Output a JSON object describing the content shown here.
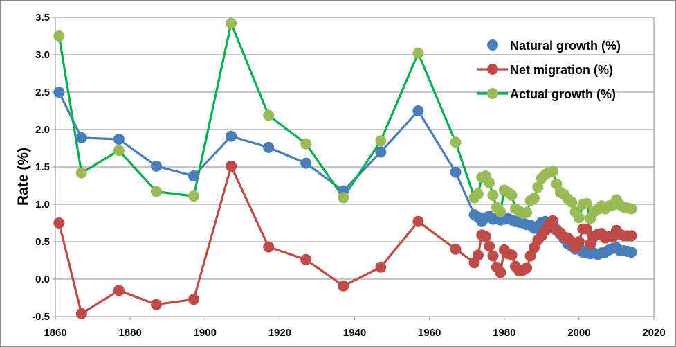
{
  "chart_data": {
    "type": "line",
    "title": "",
    "xlabel": "",
    "ylabel": "Rate (%)",
    "xlim": [
      1860,
      2020
    ],
    "ylim": [
      -0.5,
      3.5
    ],
    "x_ticks": [
      "1860",
      "1880",
      "1900",
      "1920",
      "1940",
      "1960",
      "1980",
      "2000",
      "2020"
    ],
    "y_ticks": [
      "-0.5",
      "0.0",
      "0.5",
      "1.0",
      "1.5",
      "2.0",
      "2.5",
      "3.0",
      "3.5"
    ],
    "grid": "horizontal",
    "legend_position": "top-right",
    "series": [
      {
        "name": "Natural growth (%)",
        "color": "#4a7ebb",
        "points": [
          [
            1861,
            2.5
          ],
          [
            1867,
            1.89
          ],
          [
            1877,
            1.87
          ],
          [
            1887,
            1.51
          ],
          [
            1897,
            1.38
          ],
          [
            1907,
            1.91
          ],
          [
            1917,
            1.76
          ],
          [
            1927,
            1.55
          ],
          [
            1937,
            1.18
          ],
          [
            1947,
            1.7
          ],
          [
            1957,
            2.25
          ],
          [
            1967,
            1.43
          ],
          [
            1972,
            0.86
          ],
          [
            1973,
            0.83
          ],
          [
            1974,
            0.77
          ],
          [
            1975,
            0.82
          ],
          [
            1976,
            0.84
          ],
          [
            1977,
            0.8
          ],
          [
            1978,
            0.81
          ],
          [
            1979,
            0.79
          ],
          [
            1980,
            0.8
          ],
          [
            1981,
            0.81
          ],
          [
            1982,
            0.79
          ],
          [
            1983,
            0.77
          ],
          [
            1984,
            0.76
          ],
          [
            1985,
            0.75
          ],
          [
            1986,
            0.73
          ],
          [
            1987,
            0.72
          ],
          [
            1988,
            0.68
          ],
          [
            1989,
            0.71
          ],
          [
            1990,
            0.76
          ],
          [
            1991,
            0.77
          ],
          [
            1992,
            0.76
          ],
          [
            1993,
            0.72
          ],
          [
            1994,
            0.66
          ],
          [
            1995,
            0.6
          ],
          [
            1996,
            0.54
          ],
          [
            1997,
            0.47
          ],
          [
            1998,
            0.44
          ],
          [
            1999,
            0.4
          ],
          [
            2000,
            0.43
          ],
          [
            2001,
            0.36
          ],
          [
            2002,
            0.35
          ],
          [
            2003,
            0.34
          ],
          [
            2004,
            0.35
          ],
          [
            2005,
            0.33
          ],
          [
            2006,
            0.35
          ],
          [
            2007,
            0.36
          ],
          [
            2008,
            0.39
          ],
          [
            2009,
            0.41
          ],
          [
            2010,
            0.42
          ],
          [
            2011,
            0.38
          ],
          [
            2012,
            0.38
          ],
          [
            2013,
            0.37
          ],
          [
            2014,
            0.36
          ]
        ]
      },
      {
        "name": "Net migration (%)",
        "color": "#be4b48",
        "points": [
          [
            1861,
            0.75
          ],
          [
            1867,
            -0.46
          ],
          [
            1877,
            -0.15
          ],
          [
            1887,
            -0.34
          ],
          [
            1897,
            -0.27
          ],
          [
            1907,
            1.51
          ],
          [
            1917,
            0.43
          ],
          [
            1927,
            0.26
          ],
          [
            1937,
            -0.09
          ],
          [
            1947,
            0.16
          ],
          [
            1957,
            0.77
          ],
          [
            1967,
            0.4
          ],
          [
            1972,
            0.22
          ],
          [
            1973,
            0.32
          ],
          [
            1974,
            0.59
          ],
          [
            1975,
            0.57
          ],
          [
            1976,
            0.44
          ],
          [
            1977,
            0.31
          ],
          [
            1978,
            0.16
          ],
          [
            1979,
            0.09
          ],
          [
            1980,
            0.39
          ],
          [
            1981,
            0.34
          ],
          [
            1982,
            0.32
          ],
          [
            1983,
            0.17
          ],
          [
            1984,
            0.11
          ],
          [
            1985,
            0.12
          ],
          [
            1986,
            0.15
          ],
          [
            1987,
            0.31
          ],
          [
            1988,
            0.42
          ],
          [
            1989,
            0.52
          ],
          [
            1990,
            0.58
          ],
          [
            1991,
            0.65
          ],
          [
            1992,
            0.74
          ],
          [
            1993,
            0.78
          ],
          [
            1994,
            0.65
          ],
          [
            1995,
            0.62
          ],
          [
            1996,
            0.56
          ],
          [
            1997,
            0.55
          ],
          [
            1998,
            0.5
          ],
          [
            1999,
            0.42
          ],
          [
            2000,
            0.5
          ],
          [
            2001,
            0.67
          ],
          [
            2002,
            0.67
          ],
          [
            2003,
            0.47
          ],
          [
            2004,
            0.57
          ],
          [
            2005,
            0.6
          ],
          [
            2006,
            0.61
          ],
          [
            2007,
            0.55
          ],
          [
            2008,
            0.57
          ],
          [
            2009,
            0.56
          ],
          [
            2010,
            0.65
          ],
          [
            2011,
            0.6
          ],
          [
            2012,
            0.58
          ],
          [
            2013,
            0.58
          ],
          [
            2014,
            0.58
          ]
        ]
      },
      {
        "name": "Actual growth (%)",
        "color": "#00b050",
        "marker_color": "#9bbb59",
        "points": [
          [
            1861,
            3.25
          ],
          [
            1867,
            1.42
          ],
          [
            1877,
            1.72
          ],
          [
            1887,
            1.17
          ],
          [
            1897,
            1.11
          ],
          [
            1907,
            3.42
          ],
          [
            1917,
            2.19
          ],
          [
            1927,
            1.81
          ],
          [
            1937,
            1.09
          ],
          [
            1947,
            1.85
          ],
          [
            1957,
            3.02
          ],
          [
            1967,
            1.83
          ],
          [
            1972,
            1.09
          ],
          [
            1973,
            1.14
          ],
          [
            1974,
            1.36
          ],
          [
            1975,
            1.38
          ],
          [
            1976,
            1.29
          ],
          [
            1977,
            1.12
          ],
          [
            1978,
            0.96
          ],
          [
            1979,
            0.9
          ],
          [
            1980,
            1.19
          ],
          [
            1981,
            1.16
          ],
          [
            1982,
            1.12
          ],
          [
            1983,
            0.94
          ],
          [
            1984,
            0.91
          ],
          [
            1985,
            0.88
          ],
          [
            1986,
            0.89
          ],
          [
            1987,
            1.05
          ],
          [
            1988,
            1.08
          ],
          [
            1989,
            1.23
          ],
          [
            1990,
            1.35
          ],
          [
            1991,
            1.4
          ],
          [
            1992,
            1.43
          ],
          [
            1993,
            1.44
          ],
          [
            1994,
            1.27
          ],
          [
            1995,
            1.16
          ],
          [
            1996,
            1.13
          ],
          [
            1997,
            1.07
          ],
          [
            1998,
            1.03
          ],
          [
            1999,
            0.9
          ],
          [
            2000,
            0.82
          ],
          [
            2001,
            1.0
          ],
          [
            2002,
            1.01
          ],
          [
            2003,
            0.81
          ],
          [
            2004,
            0.9
          ],
          [
            2005,
            0.93
          ],
          [
            2006,
            0.98
          ],
          [
            2007,
            0.94
          ],
          [
            2008,
            0.98
          ],
          [
            2009,
            0.99
          ],
          [
            2010,
            1.06
          ],
          [
            2011,
            0.99
          ],
          [
            2012,
            0.96
          ],
          [
            2013,
            0.95
          ],
          [
            2014,
            0.94
          ]
        ]
      }
    ]
  }
}
